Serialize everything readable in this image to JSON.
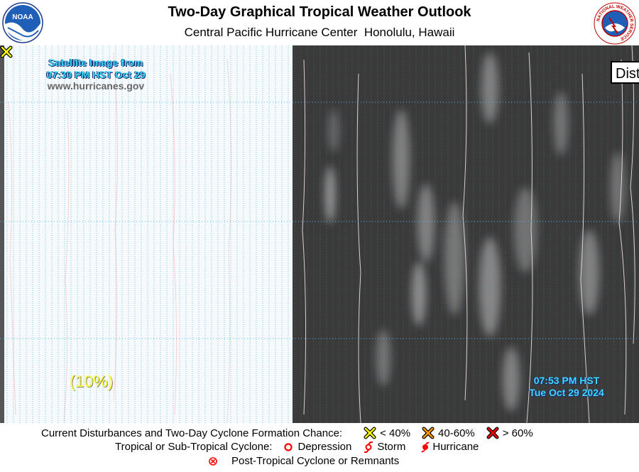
{
  "header": {
    "title": "Two-Day Graphical Tropical Weather Outlook",
    "subtitle": "Central Pacific Hurricane Center  Honolulu, Hawaii",
    "left_logo_text": "NOAA",
    "right_logo_text": "NATIONAL WEATHER SERVICE"
  },
  "map": {
    "satellite_caption_line1": "Satellite Image from",
    "satellite_caption_line2": "07:30 PM HST Oct 29",
    "website": "www.hurricanes.gov",
    "time_line1": "07:53 PM HST",
    "time_line2": "Tue Oct 29 2024",
    "area_chance": "(10%)",
    "dist_label": "Dist",
    "colors": {
      "caption": "#3fd8ff",
      "chance": "#ffff33",
      "grid": "#55b7e6",
      "satellite_dark": "#3a3a3a"
    }
  },
  "legend": {
    "row1_label": "Current Disturbances and Two-Day Cyclone Formation Chance:",
    "low": "< 40%",
    "mid": "40-60%",
    "high": "> 60%",
    "row2_label": "Tropical or Sub-Tropical Cyclone:",
    "depression": "Depression",
    "storm": "Storm",
    "hurricane": "Hurricane",
    "row3_label": "Post-Tropical Cyclone or Remnants",
    "colors": {
      "low": "#ffff00",
      "mid": "#ff9900",
      "high": "#ff0000",
      "cyclone": "#ff0000"
    }
  }
}
